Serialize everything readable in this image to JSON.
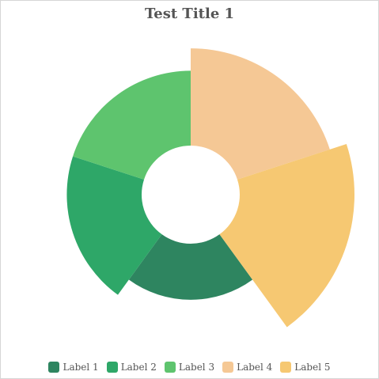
{
  "chart_data": {
    "type": "polar-area",
    "title": "Test Title 1",
    "categories": [
      "Label 1",
      "Label 2",
      "Label 3",
      "Label 4",
      "Label 5"
    ],
    "values": [
      45,
      60,
      60,
      78,
      92
    ],
    "scale_max": 92,
    "colors": [
      "#2e8560",
      "#2ea768",
      "#5ec46e",
      "#f5c895",
      "#f6c872"
    ],
    "legend_position": "bottom",
    "grid": false
  }
}
